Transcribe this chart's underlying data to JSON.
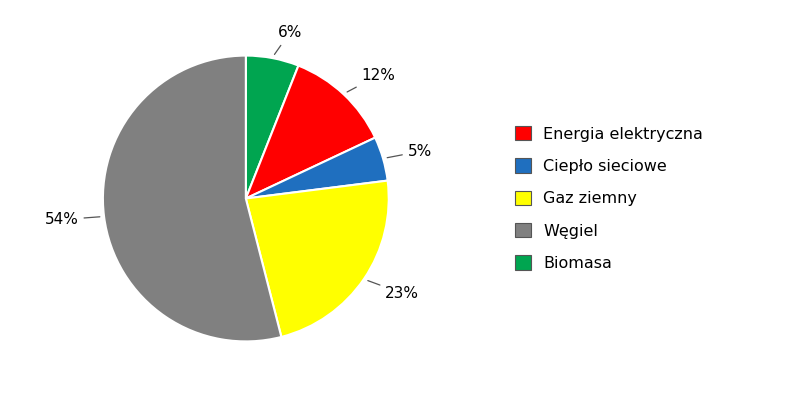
{
  "labels": [
    "Energia elektryczna",
    "Ciepło sieciowe",
    "Gaz ziemny",
    "Węgiel",
    "Biomasa"
  ],
  "values": [
    12,
    5,
    23,
    54,
    6
  ],
  "colors": [
    "#ff0000",
    "#1F6FBF",
    "#ffff00",
    "#808080",
    "#00a550"
  ],
  "pct_labels": [
    "12%",
    "5%",
    "23%",
    "54%",
    "6%"
  ],
  "background_color": "#ffffff",
  "legend_fontsize": 11.5,
  "label_fontsize": 11,
  "slice_order": [
    4,
    0,
    1,
    2,
    3
  ],
  "startangle": 90
}
